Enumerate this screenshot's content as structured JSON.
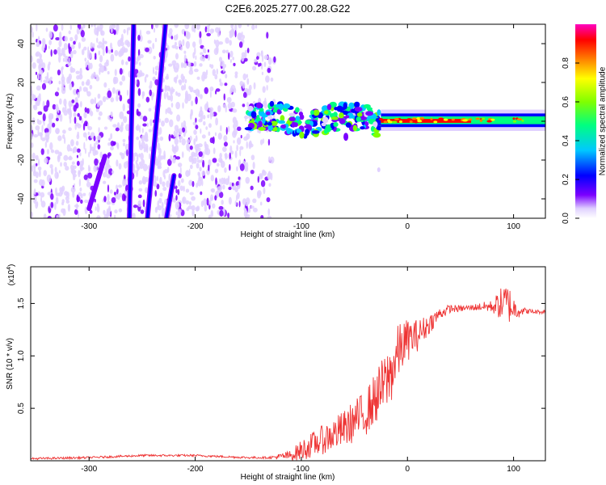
{
  "title": "C2E6.2025.277.00.28.G22",
  "chart_data": [
    {
      "type": "heatmap",
      "name": "spectrogram",
      "xlabel": "Height of straight line (km)",
      "ylabel": "Frequency (Hz)",
      "xlim": [
        -355,
        130
      ],
      "ylim": [
        -50,
        50
      ],
      "xticks": [
        -300,
        -200,
        -100,
        0,
        100
      ],
      "yticks": [
        -40,
        -20,
        0,
        20,
        40
      ],
      "xtick_labels": [
        "-300",
        "-200",
        "-100",
        "0",
        "100"
      ],
      "ytick_labels": [
        "-40",
        "-20",
        "0",
        "20",
        "40"
      ],
      "colorbar": {
        "label": "Normalized spectral amplitude",
        "range": [
          0,
          1
        ],
        "ticks": [
          0.0,
          0.2,
          0.4,
          0.6,
          0.8
        ],
        "tick_labels": [
          "0.0",
          "0.2",
          "0.4",
          "0.6",
          "0.8"
        ],
        "colors": [
          "#ffffff",
          "#e0d0ff",
          "#7b00ff",
          "#0000ff",
          "#00c8ff",
          "#00ff80",
          "#80ff00",
          "#ffff00",
          "#ff8000",
          "#ff0000",
          "#ff00c0"
        ]
      },
      "features": [
        {
          "desc": "noise",
          "x": [
            -355,
            -125
          ],
          "amplitude": 0.1
        },
        {
          "desc": "streak-a",
          "x0": -262,
          "y0": -50,
          "x1": -258,
          "y1": 50,
          "amplitude": 0.2
        },
        {
          "desc": "streak-b",
          "x0": -245,
          "y0": -50,
          "x1": -228,
          "y1": 50,
          "amplitude": 0.25
        },
        {
          "desc": "streak-c",
          "x0": -227,
          "y0": -50,
          "x1": -220,
          "y1": -28,
          "amplitude": 0.25
        },
        {
          "desc": "streak-d",
          "x0": -300,
          "y0": -45,
          "x1": -285,
          "y1": -18,
          "amplitude": 0.15
        },
        {
          "desc": "carrier-turbulent",
          "x": [
            -150,
            -25
          ],
          "y": [
            -6,
            8
          ],
          "amplitude": 0.45
        },
        {
          "desc": "carrier-stable",
          "x": [
            -25,
            130
          ],
          "y": [
            -2,
            3
          ],
          "amplitude": 0.8
        }
      ]
    },
    {
      "type": "line",
      "name": "snr",
      "xlabel": "Height of straight line (km)",
      "ylabel": "SNR (10 * v/v)",
      "multiplier_label": "(x10",
      "multiplier_exp": "4",
      "multiplier_close": ")",
      "xlim": [
        -355,
        130
      ],
      "ylim": [
        0,
        1.85
      ],
      "xticks": [
        -300,
        -200,
        -100,
        0,
        100
      ],
      "yticks": [
        0.5,
        1.0,
        1.5
      ],
      "xtick_labels": [
        "-300",
        "-200",
        "-100",
        "0",
        "100"
      ],
      "ytick_labels": [
        "0.5",
        "1.0",
        "1.5"
      ],
      "color": "#ee3333",
      "series": [
        {
          "name": "SNR",
          "x": [
            -355,
            -300,
            -250,
            -200,
            -150,
            -130,
            -110,
            -100,
            -90,
            -80,
            -70,
            -60,
            -50,
            -40,
            -30,
            -20,
            -15,
            -10,
            -5,
            0,
            10,
            20,
            30,
            40,
            50,
            60,
            70,
            80,
            90,
            95,
            100,
            110,
            120,
            130
          ],
          "y": [
            0.02,
            0.03,
            0.05,
            0.05,
            0.03,
            0.03,
            0.05,
            0.1,
            0.15,
            0.2,
            0.25,
            0.3,
            0.38,
            0.45,
            0.6,
            0.75,
            0.85,
            1.0,
            1.1,
            1.15,
            1.2,
            1.3,
            1.4,
            1.45,
            1.45,
            1.46,
            1.47,
            1.47,
            1.5,
            1.5,
            1.45,
            1.43,
            1.42,
            1.42
          ],
          "noise": [
            0.01,
            0.01,
            0.01,
            0.01,
            0.01,
            0.01,
            0.05,
            0.1,
            0.12,
            0.14,
            0.16,
            0.18,
            0.2,
            0.22,
            0.25,
            0.3,
            0.3,
            0.28,
            0.25,
            0.2,
            0.15,
            0.1,
            0.06,
            0.04,
            0.03,
            0.03,
            0.04,
            0.06,
            0.18,
            0.2,
            0.12,
            0.03,
            0.02,
            0.02
          ]
        }
      ]
    }
  ]
}
